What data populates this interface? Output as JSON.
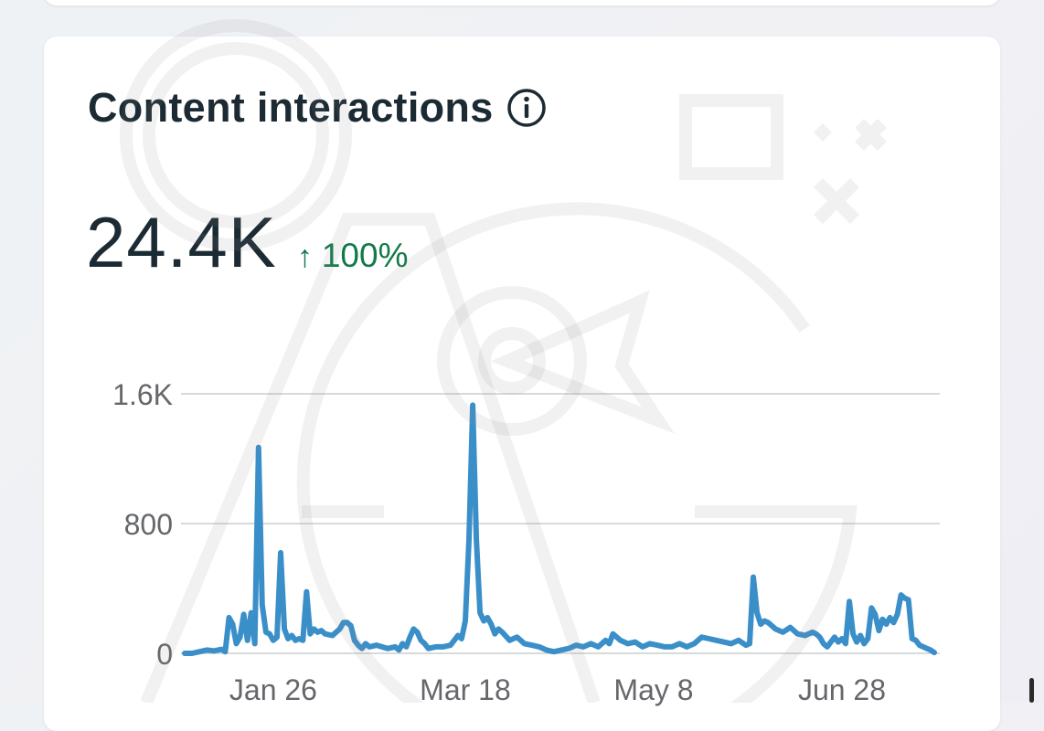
{
  "card": {
    "title": "Content interactions",
    "info_icon": "info-icon",
    "metric_value": "24.4K",
    "change_arrow": "↑",
    "change_text": "100%",
    "accent_color": "#3b8fc9",
    "positive_color": "#117a48"
  },
  "chart_data": {
    "type": "line",
    "title": "",
    "xlabel": "",
    "ylabel": "",
    "ylim": [
      0,
      1600
    ],
    "y_ticks": [
      {
        "value": 0,
        "label": "0"
      },
      {
        "value": 800,
        "label": "800"
      },
      {
        "value": 1600,
        "label": "1.6K"
      }
    ],
    "x_ticks": [
      {
        "x": 24,
        "label": "Jan 26"
      },
      {
        "x": 76,
        "label": "Mar 18"
      },
      {
        "x": 127,
        "label": "May 8"
      },
      {
        "x": 178,
        "label": "Jun 28"
      }
    ],
    "xlim": [
      0,
      204
    ],
    "grid": true,
    "series": [
      {
        "color": "#3b8fc9",
        "points": [
          [
            0,
            0
          ],
          [
            2,
            0
          ],
          [
            4,
            10
          ],
          [
            6,
            20
          ],
          [
            8,
            15
          ],
          [
            10,
            25
          ],
          [
            11,
            10
          ],
          [
            12,
            220
          ],
          [
            13,
            180
          ],
          [
            14,
            60
          ],
          [
            15,
            100
          ],
          [
            16,
            240
          ],
          [
            17,
            80
          ],
          [
            18,
            250
          ],
          [
            19,
            60
          ],
          [
            20,
            1270
          ],
          [
            21,
            300
          ],
          [
            22,
            130
          ],
          [
            23,
            120
          ],
          [
            24,
            80
          ],
          [
            25,
            100
          ],
          [
            26,
            620
          ],
          [
            27,
            150
          ],
          [
            28,
            90
          ],
          [
            29,
            110
          ],
          [
            30,
            80
          ],
          [
            31,
            90
          ],
          [
            32,
            80
          ],
          [
            33,
            380
          ],
          [
            34,
            120
          ],
          [
            35,
            150
          ],
          [
            36,
            130
          ],
          [
            37,
            140
          ],
          [
            38,
            120
          ],
          [
            40,
            110
          ],
          [
            42,
            150
          ],
          [
            43,
            190
          ],
          [
            44,
            190
          ],
          [
            45,
            170
          ],
          [
            46,
            80
          ],
          [
            47,
            50
          ],
          [
            48,
            30
          ],
          [
            49,
            60
          ],
          [
            50,
            40
          ],
          [
            52,
            50
          ],
          [
            55,
            30
          ],
          [
            57,
            40
          ],
          [
            58,
            20
          ],
          [
            59,
            60
          ],
          [
            60,
            40
          ],
          [
            61,
            100
          ],
          [
            62,
            150
          ],
          [
            63,
            130
          ],
          [
            64,
            80
          ],
          [
            65,
            60
          ],
          [
            66,
            30
          ],
          [
            68,
            40
          ],
          [
            70,
            40
          ],
          [
            72,
            50
          ],
          [
            73,
            80
          ],
          [
            74,
            110
          ],
          [
            75,
            90
          ],
          [
            76,
            200
          ],
          [
            77,
            700
          ],
          [
            78,
            1530
          ],
          [
            79,
            700
          ],
          [
            80,
            250
          ],
          [
            81,
            200
          ],
          [
            82,
            220
          ],
          [
            83,
            180
          ],
          [
            84,
            120
          ],
          [
            85,
            150
          ],
          [
            86,
            130
          ],
          [
            88,
            80
          ],
          [
            90,
            100
          ],
          [
            92,
            60
          ],
          [
            94,
            50
          ],
          [
            96,
            40
          ],
          [
            98,
            20
          ],
          [
            100,
            10
          ],
          [
            102,
            20
          ],
          [
            104,
            30
          ],
          [
            106,
            50
          ],
          [
            108,
            40
          ],
          [
            110,
            60
          ],
          [
            112,
            40
          ],
          [
            114,
            80
          ],
          [
            115,
            60
          ],
          [
            116,
            120
          ],
          [
            117,
            100
          ],
          [
            118,
            80
          ],
          [
            120,
            60
          ],
          [
            122,
            70
          ],
          [
            124,
            40
          ],
          [
            126,
            60
          ],
          [
            128,
            50
          ],
          [
            130,
            40
          ],
          [
            132,
            40
          ],
          [
            134,
            60
          ],
          [
            136,
            40
          ],
          [
            138,
            60
          ],
          [
            140,
            100
          ],
          [
            142,
            90
          ],
          [
            144,
            80
          ],
          [
            146,
            70
          ],
          [
            148,
            60
          ],
          [
            150,
            80
          ],
          [
            152,
            50
          ],
          [
            153,
            60
          ],
          [
            154,
            470
          ],
          [
            155,
            250
          ],
          [
            156,
            180
          ],
          [
            157,
            200
          ],
          [
            158,
            190
          ],
          [
            160,
            150
          ],
          [
            162,
            130
          ],
          [
            164,
            160
          ],
          [
            166,
            120
          ],
          [
            168,
            110
          ],
          [
            170,
            130
          ],
          [
            171,
            120
          ],
          [
            172,
            100
          ],
          [
            173,
            60
          ],
          [
            174,
            40
          ],
          [
            176,
            100
          ],
          [
            177,
            70
          ],
          [
            178,
            90
          ],
          [
            179,
            60
          ],
          [
            180,
            320
          ],
          [
            181,
            120
          ],
          [
            182,
            70
          ],
          [
            183,
            110
          ],
          [
            184,
            60
          ],
          [
            185,
            90
          ],
          [
            186,
            280
          ],
          [
            187,
            240
          ],
          [
            188,
            140
          ],
          [
            189,
            210
          ],
          [
            190,
            180
          ],
          [
            191,
            220
          ],
          [
            192,
            190
          ],
          [
            193,
            240
          ],
          [
            194,
            360
          ],
          [
            195,
            340
          ],
          [
            196,
            330
          ],
          [
            197,
            90
          ],
          [
            198,
            80
          ],
          [
            199,
            50
          ],
          [
            200,
            40
          ],
          [
            201,
            30
          ],
          [
            202,
            20
          ],
          [
            203,
            5
          ]
        ]
      }
    ]
  }
}
